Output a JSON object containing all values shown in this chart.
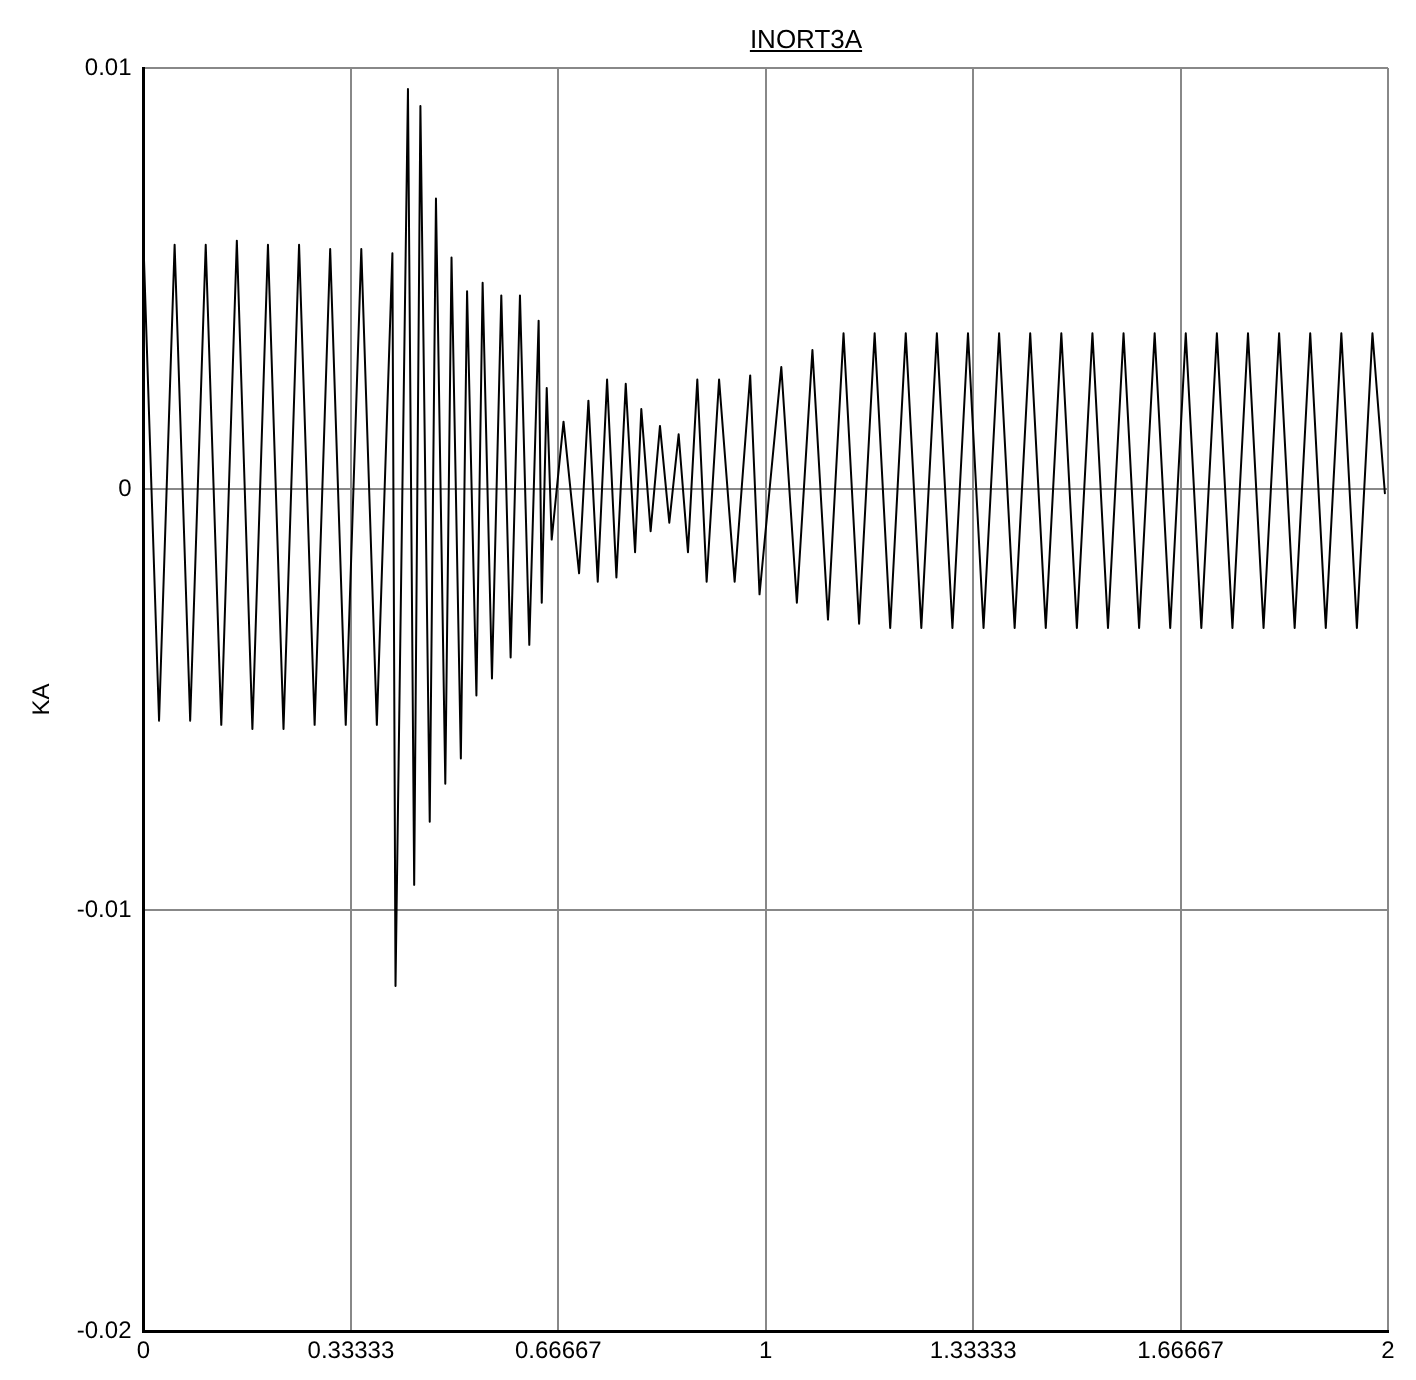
{
  "chart_data": {
    "type": "line",
    "title": "INORT3A",
    "ylabel": "KA",
    "color": "#000000",
    "grid": true,
    "xlim": [
      0,
      2
    ],
    "xticks": [
      0,
      0.33333,
      0.66667,
      1,
      1.33333,
      1.66667,
      2
    ],
    "ylim": [
      -0.02,
      0.01
    ],
    "yticks": [
      -0.02,
      -0.01,
      0,
      0.01
    ],
    "x": [
      0,
      0.025,
      0.05,
      0.075,
      0.1,
      0.125,
      0.15,
      0.175,
      0.2,
      0.225,
      0.25,
      0.275,
      0.3,
      0.325,
      0.35,
      0.375,
      0.4,
      0.405,
      0.425,
      0.435,
      0.445,
      0.46,
      0.47,
      0.485,
      0.495,
      0.51,
      0.52,
      0.535,
      0.545,
      0.56,
      0.575,
      0.59,
      0.605,
      0.62,
      0.635,
      0.64,
      0.648,
      0.656,
      0.675,
      0.7,
      0.715,
      0.73,
      0.745,
      0.76,
      0.775,
      0.79,
      0.8,
      0.815,
      0.83,
      0.845,
      0.86,
      0.875,
      0.89,
      0.905,
      0.925,
      0.95,
      0.975,
      0.99,
      1.025,
      1.05,
      1.075,
      1.1,
      1.125,
      1.15,
      1.175,
      1.2,
      1.225,
      1.25,
      1.275,
      1.3,
      1.325,
      1.35,
      1.375,
      1.4,
      1.425,
      1.45,
      1.475,
      1.5,
      1.525,
      1.55,
      1.575,
      1.6,
      1.625,
      1.65,
      1.675,
      1.7,
      1.725,
      1.75,
      1.775,
      1.8,
      1.825,
      1.85,
      1.875,
      1.9,
      1.925,
      1.95,
      1.975,
      1.995
    ],
    "values": [
      0.0058,
      -0.0055,
      0.0058,
      -0.0055,
      0.0058,
      -0.0056,
      0.0059,
      -0.0057,
      0.0058,
      -0.0057,
      0.0058,
      -0.0056,
      0.0057,
      -0.0056,
      0.0057,
      -0.0056,
      0.0056,
      -0.0118,
      0.0095,
      -0.0094,
      0.0091,
      -0.0079,
      0.0069,
      -0.007,
      0.0055,
      -0.0064,
      0.0047,
      -0.0049,
      0.0049,
      -0.0045,
      0.0046,
      -0.004,
      0.0046,
      -0.0037,
      0.004,
      -0.0027,
      0.0024,
      -0.0012,
      0.0016,
      -0.002,
      0.0021,
      -0.0022,
      0.0026,
      -0.0021,
      0.0025,
      -0.0015,
      0.0019,
      -0.001,
      0.0015,
      -0.0008,
      0.0013,
      -0.0015,
      0.0026,
      -0.0022,
      0.0026,
      -0.0022,
      0.0027,
      -0.0025,
      0.0029,
      -0.0027,
      0.0033,
      -0.0031,
      0.0037,
      -0.0032,
      0.0037,
      -0.0033,
      0.0037,
      -0.0033,
      0.0037,
      -0.0033,
      0.0037,
      -0.0033,
      0.0037,
      -0.0033,
      0.0037,
      -0.0033,
      0.0037,
      -0.0033,
      0.0037,
      -0.0033,
      0.0037,
      -0.0033,
      0.0037,
      -0.0033,
      0.0037,
      -0.0033,
      0.0037,
      -0.0033,
      0.0037,
      -0.0033,
      0.0037,
      -0.0033,
      0.0037,
      -0.0033,
      0.0037,
      -0.0033,
      0.0037,
      -0.0001
    ]
  }
}
